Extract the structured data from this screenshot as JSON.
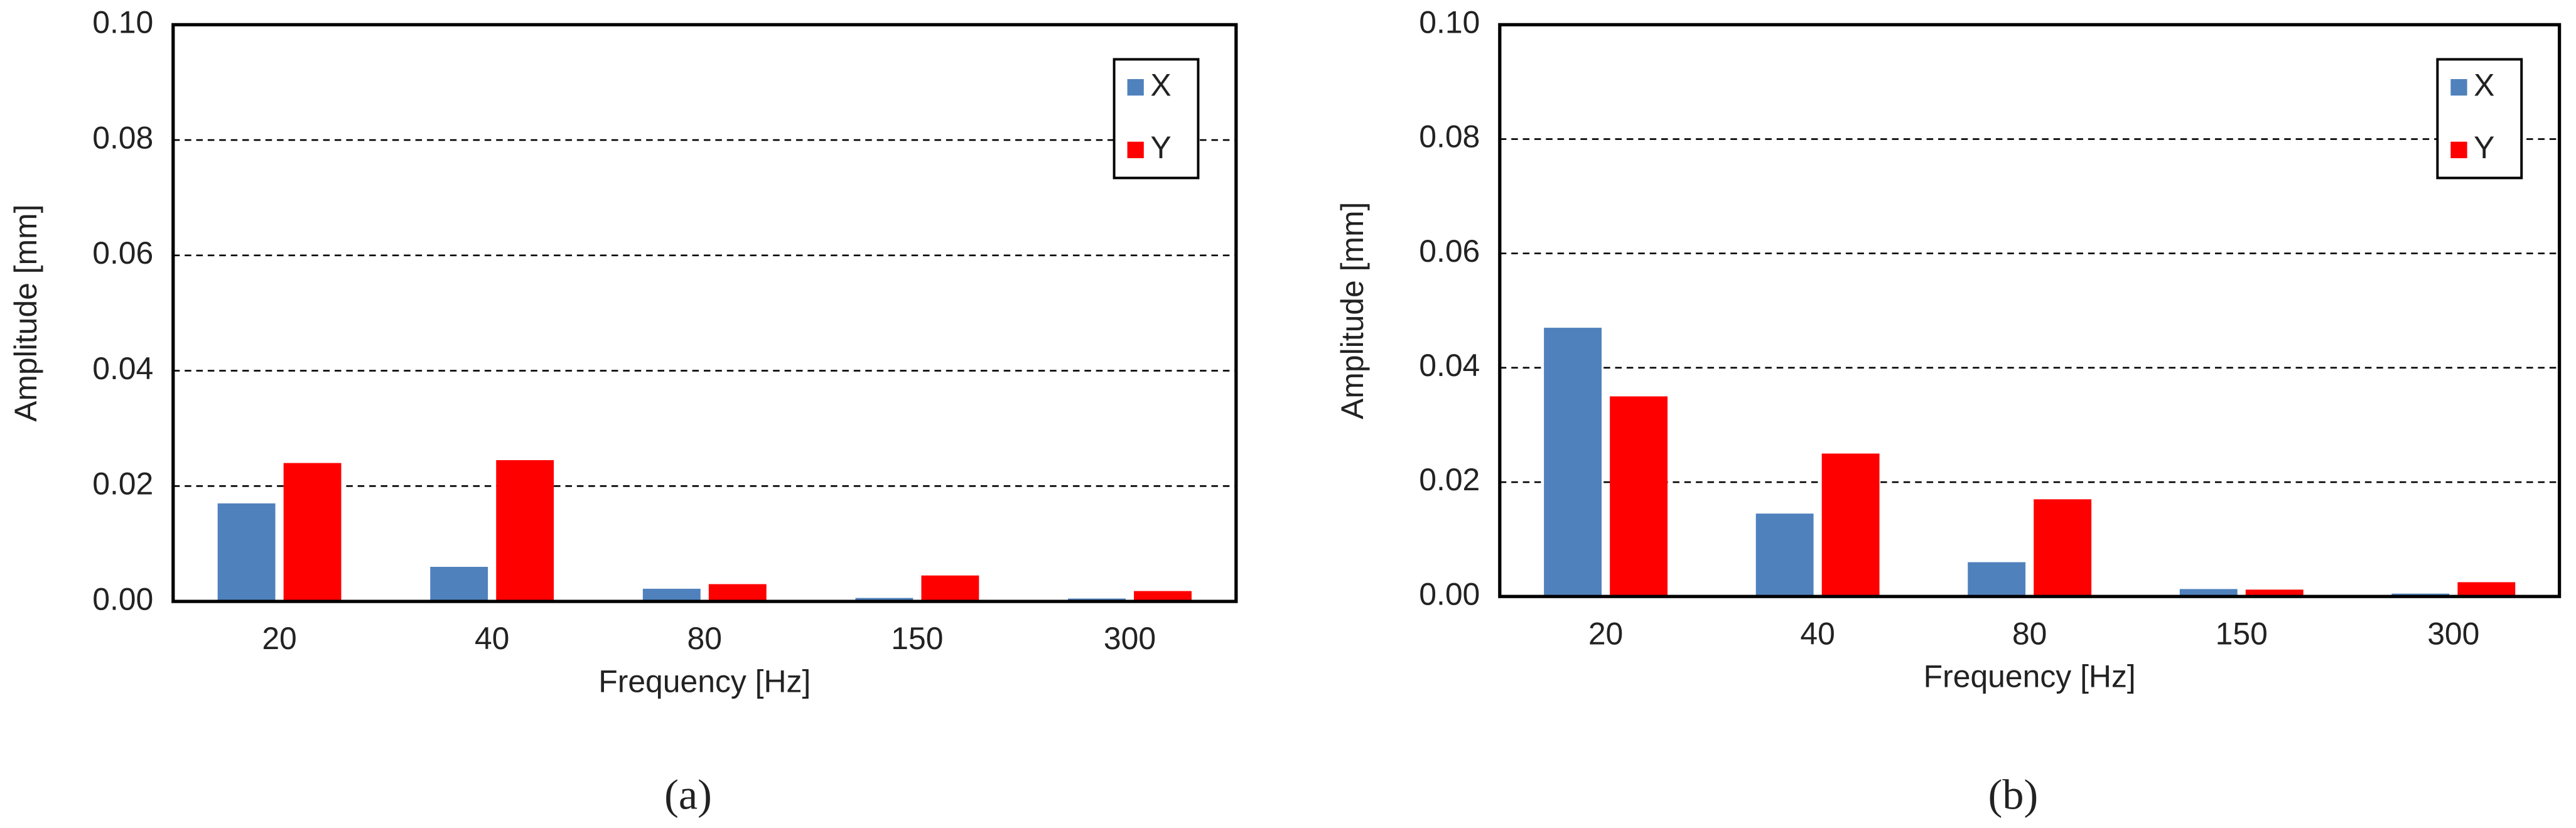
{
  "chart_data": [
    {
      "type": "bar",
      "caption": "(a)",
      "xlabel": "Frequency [Hz]",
      "ylabel": "Amplitude [mm]",
      "categories": [
        "20",
        "40",
        "80",
        "150",
        "300"
      ],
      "series": [
        {
          "name": "X",
          "color": "#4f81bd",
          "values": [
            0.017,
            0.006,
            0.0022,
            0.0006,
            0.0005
          ]
        },
        {
          "name": "Y",
          "color": "#ff0000",
          "values": [
            0.024,
            0.0245,
            0.003,
            0.0045,
            0.0018
          ]
        }
      ],
      "ylim": [
        0,
        0.1
      ],
      "yticks": [
        {
          "value": 0,
          "label": "0.00"
        },
        0.02,
        0.04,
        0.06,
        0.08,
        {
          "value": 0.1,
          "label": "0.10"
        }
      ],
      "grid": true,
      "legend": "upper right"
    },
    {
      "type": "bar",
      "caption": "(b)",
      "xlabel": "Frequency [Hz]",
      "ylabel": "Amplitude [mm]",
      "categories": [
        "20",
        "40",
        "80",
        "150",
        "300"
      ],
      "series": [
        {
          "name": "X",
          "color": "#4f81bd",
          "values": [
            0.047,
            0.0145,
            0.006,
            0.0013,
            0.0005
          ]
        },
        {
          "name": "Y",
          "color": "#ff0000",
          "values": [
            0.035,
            0.025,
            0.017,
            0.0012,
            0.0025
          ]
        }
      ],
      "ylim": [
        0,
        0.1
      ],
      "yticks": [
        {
          "value": 0,
          "label": "0.00"
        },
        0.02,
        0.04,
        0.06,
        0.08,
        {
          "value": 0.1,
          "label": "0.10"
        }
      ],
      "grid": true,
      "legend": "upper right"
    }
  ]
}
